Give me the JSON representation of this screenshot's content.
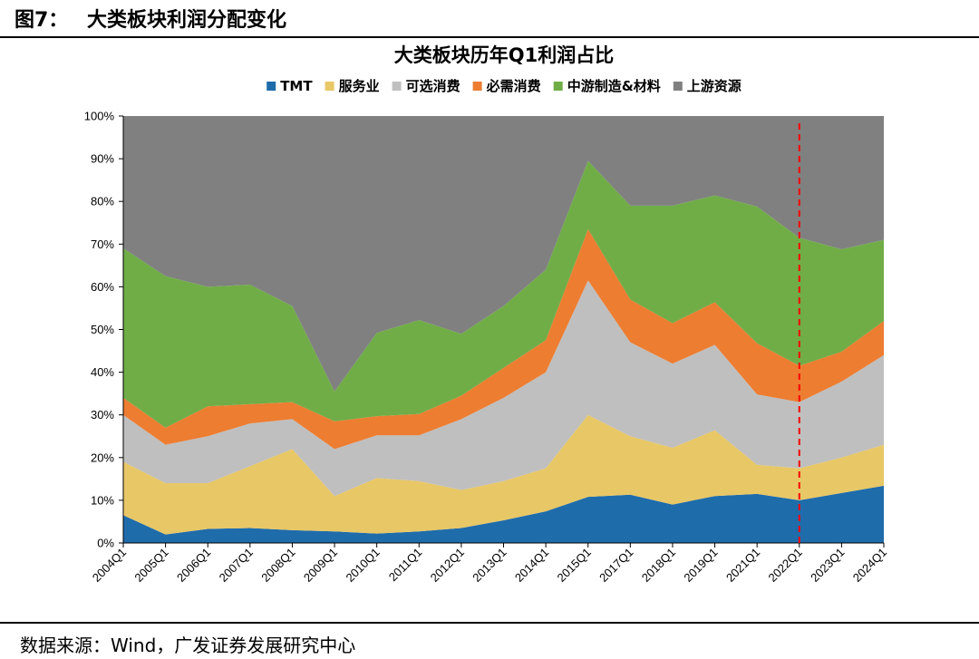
{
  "figure": {
    "number": "图7：",
    "name": "大类板块利润分配变化",
    "source": "数据来源：Wind，广发证券发展研究中心"
  },
  "chart_data": {
    "type": "area",
    "stacked": true,
    "title": "大类板块历年Q1利润占比",
    "categories": [
      "2004Q1",
      "2005Q1",
      "2006Q1",
      "2007Q1",
      "2008Q1",
      "2009Q1",
      "2010Q1",
      "2011Q1",
      "2012Q1",
      "2013Q1",
      "2014Q1",
      "2015Q1",
      "2017Q1",
      "2018Q1",
      "2019Q1",
      "2021Q1",
      "2022Q1",
      "2023Q1",
      "2024Q1"
    ],
    "series": [
      {
        "name": "TMT",
        "color": "#1f6cab",
        "values": [
          6.5,
          2.0,
          3.3,
          3.5,
          3.0,
          2.7,
          2.2,
          2.7,
          3.5,
          5.3,
          7.4,
          10.8,
          11.3,
          9.0,
          11.0,
          11.5,
          10.0,
          11.7,
          13.4
        ]
      },
      {
        "name": "服务业",
        "color": "#e8c766",
        "values": [
          12.5,
          12.0,
          10.7,
          14.5,
          19.0,
          8.3,
          13.0,
          11.8,
          8.9,
          9.2,
          10.1,
          19.2,
          13.7,
          13.3,
          15.4,
          6.8,
          7.5,
          8.3,
          9.6
        ]
      },
      {
        "name": "可选消费",
        "color": "#bfbfbf",
        "values": [
          11.0,
          9.0,
          11.0,
          10.0,
          7.0,
          11.0,
          10.0,
          10.7,
          16.6,
          19.5,
          22.5,
          31.5,
          22.0,
          19.7,
          20.0,
          16.5,
          15.5,
          17.8,
          21.0
        ]
      },
      {
        "name": "必需消费",
        "color": "#ed7d31",
        "values": [
          4.0,
          4.0,
          7.0,
          4.5,
          4.0,
          6.5,
          4.5,
          5.0,
          5.5,
          7.0,
          7.5,
          12.0,
          10.0,
          9.5,
          10.0,
          12.0,
          8.5,
          7.0,
          8.0
        ]
      },
      {
        "name": "中游制造&材料",
        "color": "#70ad47",
        "values": [
          35.0,
          35.5,
          28.0,
          28.0,
          22.5,
          7.0,
          19.5,
          22.0,
          14.5,
          14.5,
          16.5,
          16.0,
          22.0,
          27.5,
          25.0,
          32.0,
          30.0,
          24.0,
          19.0
        ]
      },
      {
        "name": "上游资源",
        "color": "#808080",
        "values": [
          31.0,
          37.5,
          40.0,
          39.5,
          44.5,
          64.5,
          50.8,
          47.8,
          51.0,
          44.5,
          36.0,
          10.5,
          21.0,
          21.0,
          18.6,
          21.2,
          28.5,
          31.2,
          29.0
        ]
      }
    ],
    "ylim": [
      0,
      100
    ],
    "yticks": [
      "0%",
      "10%",
      "20%",
      "30%",
      "40%",
      "50%",
      "60%",
      "70%",
      "80%",
      "90%",
      "100%"
    ],
    "marker": {
      "category": "2022Q1",
      "style": "dashed",
      "color": "#ff0000"
    },
    "legend_position": "top",
    "grid": false
  }
}
